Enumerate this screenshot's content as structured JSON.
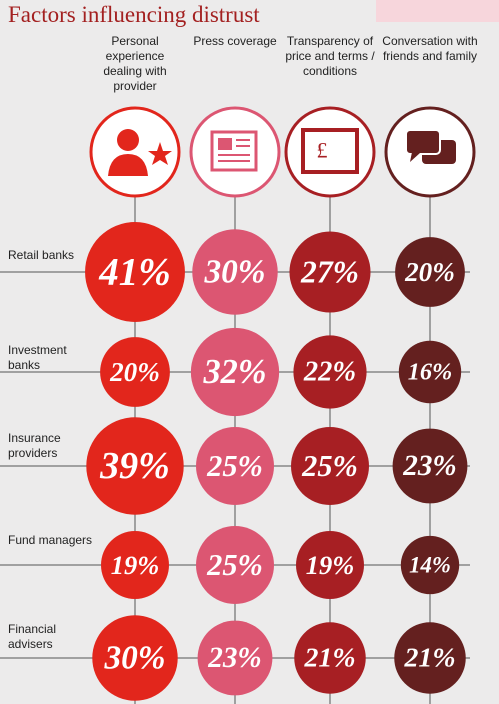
{
  "chart_data": {
    "type": "bubble-grid",
    "title": "Factors influencing distrust",
    "categories": [
      "Retail banks",
      "Investment banks",
      "Insurance providers",
      "Fund managers",
      "Financial advisers"
    ],
    "series": [
      {
        "name": "Personal experience dealing with provider",
        "color": "#e2261c",
        "values": [
          41,
          20,
          39,
          19,
          30
        ],
        "value_labels": [
          "41%",
          "20%",
          "39%",
          "19%",
          "30%"
        ]
      },
      {
        "name": "Press coverage",
        "color": "#dc5672",
        "values": [
          30,
          32,
          25,
          25,
          23
        ],
        "value_labels": [
          "30%",
          "32%",
          "25%",
          "25%",
          "23%"
        ]
      },
      {
        "name": "Transparency of price and terms / conditions",
        "color": "#a71f23",
        "values": [
          27,
          22,
          25,
          19,
          21
        ],
        "value_labels": [
          "27%",
          "22%",
          "25%",
          "19%",
          "21%"
        ]
      },
      {
        "name": "Conversation with friends and family",
        "color": "#64201f",
        "values": [
          20,
          16,
          23,
          14,
          21
        ],
        "value_labels": [
          "20%",
          "16%",
          "23%",
          "14%",
          "21%"
        ]
      }
    ]
  }
}
